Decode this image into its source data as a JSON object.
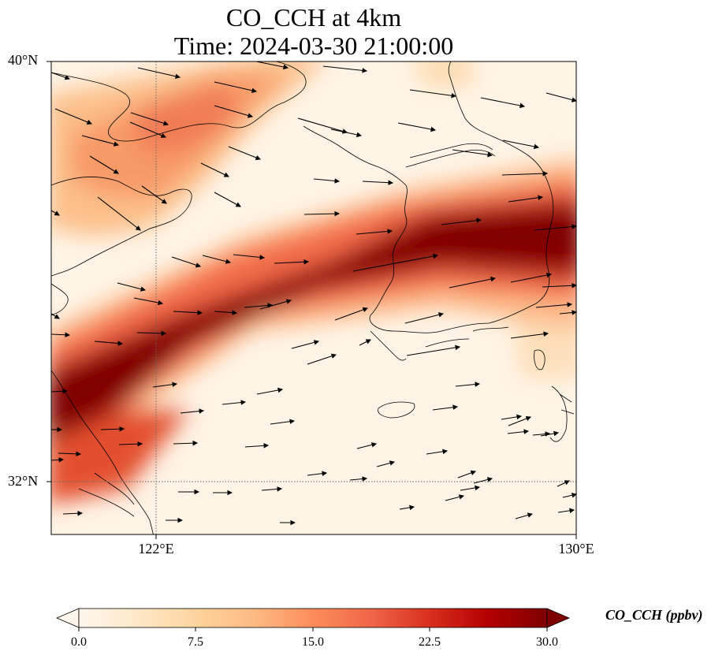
{
  "figure": {
    "title": "CO_CCH at 4km",
    "subtitle": "Time: 2024-03-30 21:00:00"
  },
  "axes": {
    "lat_ticks": [
      "40°N",
      "32°N"
    ],
    "lon_ticks": [
      "122°E",
      "130°E"
    ]
  },
  "colorbar": {
    "label": "CO_CCH (ppbv)",
    "ticks": [
      "0.0",
      "7.5",
      "15.0",
      "22.5",
      "30.0"
    ],
    "vmin": 0,
    "vmax": 30,
    "colormap": "OrRd",
    "extend": "both"
  }
}
